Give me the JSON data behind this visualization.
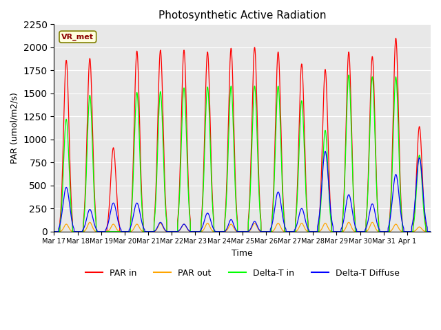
{
  "title": "Photosynthetic Active Radiation",
  "ylabel": "PAR (umol/m2/s)",
  "xlabel": "Time",
  "legend_label": "VR_met",
  "line_labels": [
    "PAR in",
    "PAR out",
    "Delta-T in",
    "Delta-T Diffuse"
  ],
  "line_colors": [
    "red",
    "orange",
    "lime",
    "blue"
  ],
  "ylim": [
    0,
    2250
  ],
  "background_color": "#e8e8e8",
  "x_tick_labels": [
    "Mar 17",
    "Mar 18",
    "Mar 19",
    "Mar 20",
    "Mar 21",
    "Mar 22",
    "Mar 23",
    "Mar 24",
    "Mar 25",
    "Mar 26",
    "Mar 27",
    "Mar 28",
    "Mar 29",
    "Mar 30",
    "Mar 31",
    "Apr 1"
  ],
  "day_peaks_par_in": [
    1860,
    1880,
    910,
    1960,
    1970,
    1970,
    1950,
    1990,
    2000,
    1950,
    1820,
    1760,
    1950,
    1900,
    2100,
    1140
  ],
  "day_peaks_par_out": [
    80,
    100,
    80,
    80,
    90,
    80,
    90,
    80,
    90,
    90,
    90,
    90,
    100,
    100,
    80,
    50
  ],
  "day_peaks_delta_t_in": [
    1220,
    1480,
    0,
    1510,
    1520,
    1560,
    1570,
    1580,
    1580,
    1580,
    1420,
    1100,
    1700,
    1680,
    1680,
    830
  ],
  "day_peaks_delta_t_diffuse": [
    480,
    240,
    310,
    310,
    100,
    80,
    200,
    130,
    110,
    430,
    250,
    870,
    400,
    300,
    620,
    800
  ]
}
